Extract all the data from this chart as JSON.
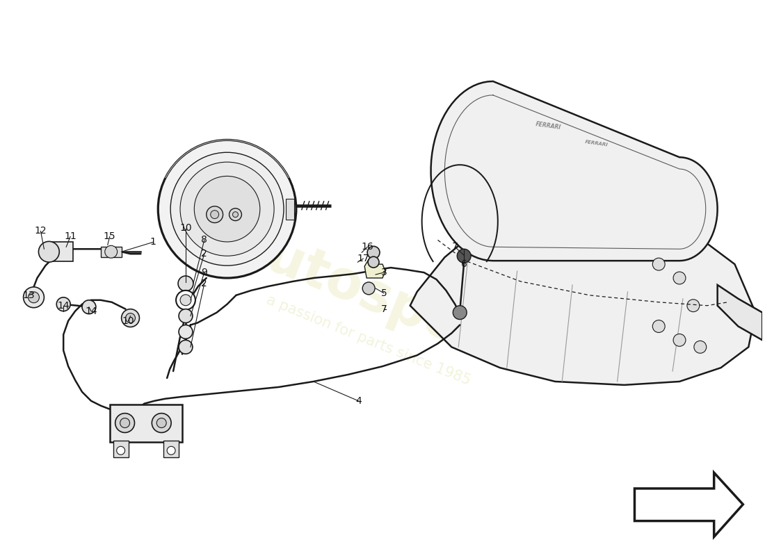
{
  "bg_color": "#ffffff",
  "line_color": "#1a1a1a",
  "line_width": 1.8,
  "label_fontsize": 10,
  "watermark1": "autospes",
  "watermark2": "a passion for parts since 1985",
  "labels": [
    [
      "1",
      2.18,
      4.52
    ],
    [
      "2",
      2.92,
      4.35
    ],
    [
      "2",
      2.92,
      3.92
    ],
    [
      "3",
      5.52,
      4.08
    ],
    [
      "4",
      5.15,
      2.22
    ],
    [
      "5",
      5.52,
      3.78
    ],
    [
      "6",
      6.68,
      4.2
    ],
    [
      "7",
      6.55,
      4.45
    ],
    [
      "7",
      5.52,
      3.55
    ],
    [
      "8",
      2.92,
      4.55
    ],
    [
      "9",
      2.92,
      4.08
    ],
    [
      "10",
      2.65,
      4.72
    ],
    [
      "10",
      1.82,
      3.38
    ],
    [
      "11",
      0.98,
      4.6
    ],
    [
      "12",
      0.55,
      4.68
    ],
    [
      "13",
      0.38,
      3.75
    ],
    [
      "14",
      0.88,
      3.6
    ],
    [
      "14",
      1.28,
      3.52
    ],
    [
      "15",
      1.55,
      4.6
    ],
    [
      "16",
      5.28,
      4.45
    ],
    [
      "17",
      5.22,
      4.28
    ]
  ]
}
